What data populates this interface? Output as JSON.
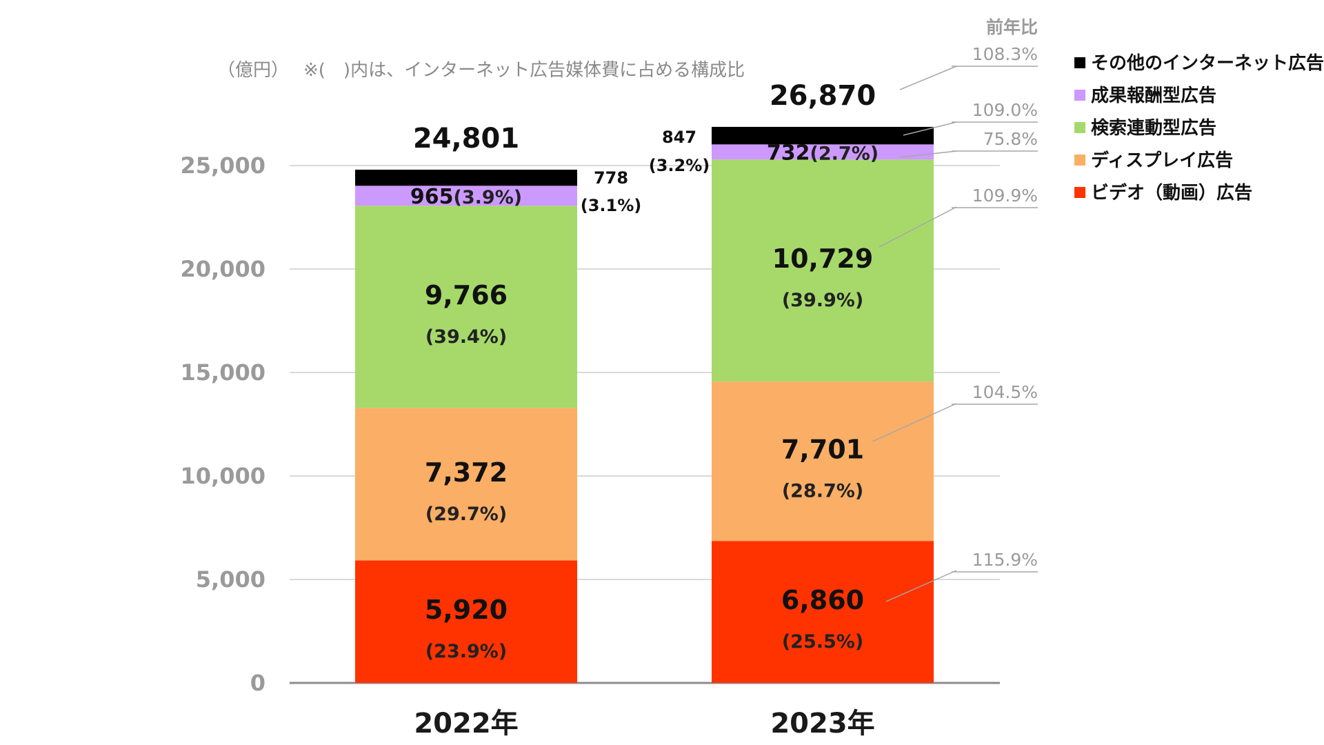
{
  "chart_data": {
    "type": "bar",
    "stacked": true,
    "unit_label": "（億円）",
    "note": "※(　)内は、インターネット広告媒体費に占める構成比",
    "yoy_header": "前年比",
    "categories": [
      "2022年",
      "2023年"
    ],
    "ylim": [
      0,
      25000
    ],
    "yticks": [
      "0",
      "5,000",
      "10,000",
      "15,000",
      "20,000",
      "25,000"
    ],
    "ytick_values": [
      0,
      5000,
      10000,
      15000,
      20000,
      25000
    ],
    "totals": [
      24801,
      26870
    ],
    "total_labels": [
      "24,801",
      "26,870"
    ],
    "grid": true,
    "legend_position": "right",
    "series": [
      {
        "name": "ビデオ（動画）広告",
        "color": "#ff3300",
        "values": [
          5920,
          6860
        ],
        "value_labels": [
          "5,920",
          "6,860"
        ],
        "pct_labels": [
          "(23.9%)",
          "(25.5%)"
        ],
        "yoy": "115.9%"
      },
      {
        "name": "ディスプレイ広告",
        "color": "#fbae66",
        "values": [
          7372,
          7701
        ],
        "value_labels": [
          "7,372",
          "7,701"
        ],
        "pct_labels": [
          "(29.7%)",
          "(28.7%)"
        ],
        "yoy": "104.5%"
      },
      {
        "name": "検索連動型広告",
        "color": "#a6d96a",
        "values": [
          9766,
          10729
        ],
        "value_labels": [
          "9,766",
          "10,729"
        ],
        "pct_labels": [
          "(39.4%)",
          "(39.9%)"
        ],
        "yoy": "109.9%"
      },
      {
        "name": "成果報酬型広告",
        "color": "#cc99ff",
        "values": [
          965,
          732
        ],
        "value_labels": [
          "965",
          "732"
        ],
        "pct_labels": [
          "(3.9%)",
          "(2.7%)"
        ],
        "yoy": "75.8%"
      },
      {
        "name": "その他のインターネット広告",
        "color": "#000000",
        "values": [
          778,
          847
        ],
        "value_labels": [
          "778",
          "847"
        ],
        "pct_labels": [
          "(3.1%)",
          "(3.2%)"
        ],
        "yoy": "109.0%"
      }
    ],
    "total_yoy": "108.3%"
  }
}
